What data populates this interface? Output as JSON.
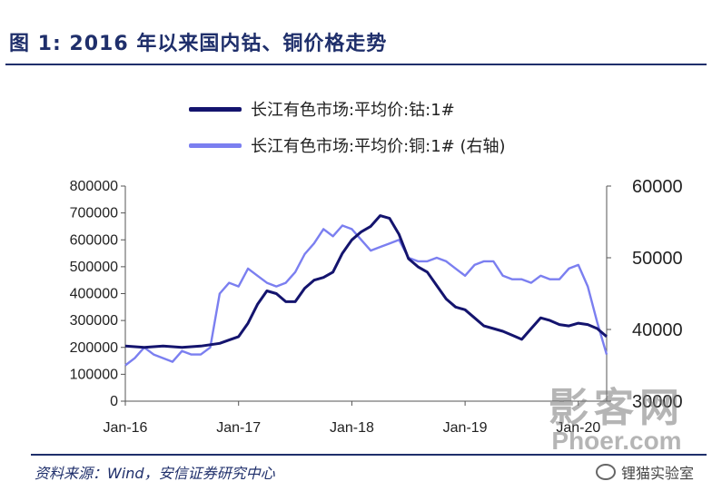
{
  "figure": {
    "title": "图 1:   2016 年以来国内钴、铜价格走势",
    "source": "资料来源：Wind，安信证券研究中心"
  },
  "watermark": {
    "line1": "影客网",
    "line2": "Phoer.com",
    "wechat": "锂猫实验室"
  },
  "colors": {
    "cobalt": "#14146e",
    "copper": "#7b7ff0",
    "title": "#1f2f6b"
  },
  "chart_data": {
    "type": "line",
    "legend_placement": "top",
    "x_labels": [
      "Jan-16",
      "Jan-17",
      "Jan-18",
      "Jan-19",
      "Jan-20"
    ],
    "xlim": [
      "2016-01",
      "2020-04"
    ],
    "y_left": {
      "ticks": [
        0,
        100000,
        200000,
        300000,
        400000,
        500000,
        600000,
        700000,
        800000
      ],
      "ylim": [
        0,
        800000
      ]
    },
    "y_right": {
      "ticks": [
        30000,
        40000,
        50000,
        60000
      ],
      "ylim": [
        30000,
        60000
      ]
    },
    "series": [
      {
        "name": "长江有色市场:平均价:钴:1#",
        "axis": "left",
        "color": "#14146e",
        "points": [
          [
            "2016-01",
            205000
          ],
          [
            "2016-03",
            200000
          ],
          [
            "2016-05",
            205000
          ],
          [
            "2016-07",
            200000
          ],
          [
            "2016-09",
            205000
          ],
          [
            "2016-11",
            215000
          ],
          [
            "2017-01",
            240000
          ],
          [
            "2017-02",
            290000
          ],
          [
            "2017-03",
            360000
          ],
          [
            "2017-04",
            410000
          ],
          [
            "2017-05",
            400000
          ],
          [
            "2017-06",
            370000
          ],
          [
            "2017-07",
            370000
          ],
          [
            "2017-08",
            420000
          ],
          [
            "2017-09",
            450000
          ],
          [
            "2017-10",
            460000
          ],
          [
            "2017-11",
            480000
          ],
          [
            "2017-12",
            550000
          ],
          [
            "2018-01",
            600000
          ],
          [
            "2018-02",
            630000
          ],
          [
            "2018-03",
            650000
          ],
          [
            "2018-04",
            690000
          ],
          [
            "2018-05",
            680000
          ],
          [
            "2018-06",
            620000
          ],
          [
            "2018-07",
            530000
          ],
          [
            "2018-08",
            500000
          ],
          [
            "2018-09",
            480000
          ],
          [
            "2018-10",
            430000
          ],
          [
            "2018-11",
            380000
          ],
          [
            "2018-12",
            350000
          ],
          [
            "2019-01",
            340000
          ],
          [
            "2019-02",
            310000
          ],
          [
            "2019-03",
            280000
          ],
          [
            "2019-04",
            270000
          ],
          [
            "2019-05",
            260000
          ],
          [
            "2019-06",
            245000
          ],
          [
            "2019-07",
            230000
          ],
          [
            "2019-08",
            270000
          ],
          [
            "2019-09",
            310000
          ],
          [
            "2019-10",
            300000
          ],
          [
            "2019-11",
            285000
          ],
          [
            "2019-12",
            280000
          ],
          [
            "2020-01",
            290000
          ],
          [
            "2020-02",
            285000
          ],
          [
            "2020-03",
            270000
          ],
          [
            "2020-04",
            240000
          ]
        ]
      },
      {
        "name": "长江有色市场:平均价:铜:1# (右轴)",
        "axis": "right",
        "color": "#7b7ff0",
        "points": [
          [
            "2016-01",
            35000
          ],
          [
            "2016-02",
            36000
          ],
          [
            "2016-03",
            37500
          ],
          [
            "2016-04",
            36500
          ],
          [
            "2016-05",
            36000
          ],
          [
            "2016-06",
            35500
          ],
          [
            "2016-07",
            37000
          ],
          [
            "2016-08",
            36500
          ],
          [
            "2016-09",
            36500
          ],
          [
            "2016-10",
            37500
          ],
          [
            "2016-11",
            45000
          ],
          [
            "2016-12",
            46500
          ],
          [
            "2017-01",
            46000
          ],
          [
            "2017-02",
            48500
          ],
          [
            "2017-03",
            47500
          ],
          [
            "2017-04",
            46500
          ],
          [
            "2017-05",
            46000
          ],
          [
            "2017-06",
            46500
          ],
          [
            "2017-07",
            48000
          ],
          [
            "2017-08",
            50500
          ],
          [
            "2017-09",
            52000
          ],
          [
            "2017-10",
            54000
          ],
          [
            "2017-11",
            53000
          ],
          [
            "2017-12",
            54500
          ],
          [
            "2018-01",
            54000
          ],
          [
            "2018-02",
            52500
          ],
          [
            "2018-03",
            51000
          ],
          [
            "2018-04",
            51500
          ],
          [
            "2018-05",
            52000
          ],
          [
            "2018-06",
            52500
          ],
          [
            "2018-07",
            50000
          ],
          [
            "2018-08",
            49500
          ],
          [
            "2018-09",
            49500
          ],
          [
            "2018-10",
            50000
          ],
          [
            "2018-11",
            49500
          ],
          [
            "2018-12",
            48500
          ],
          [
            "2019-01",
            47500
          ],
          [
            "2019-02",
            49000
          ],
          [
            "2019-03",
            49500
          ],
          [
            "2019-04",
            49500
          ],
          [
            "2019-05",
            47500
          ],
          [
            "2019-06",
            47000
          ],
          [
            "2019-07",
            47000
          ],
          [
            "2019-08",
            46500
          ],
          [
            "2019-09",
            47500
          ],
          [
            "2019-10",
            47000
          ],
          [
            "2019-11",
            47000
          ],
          [
            "2019-12",
            48500
          ],
          [
            "2020-01",
            49000
          ],
          [
            "2020-02",
            46000
          ],
          [
            "2020-03",
            41000
          ],
          [
            "2020-04",
            36500
          ]
        ]
      }
    ]
  }
}
